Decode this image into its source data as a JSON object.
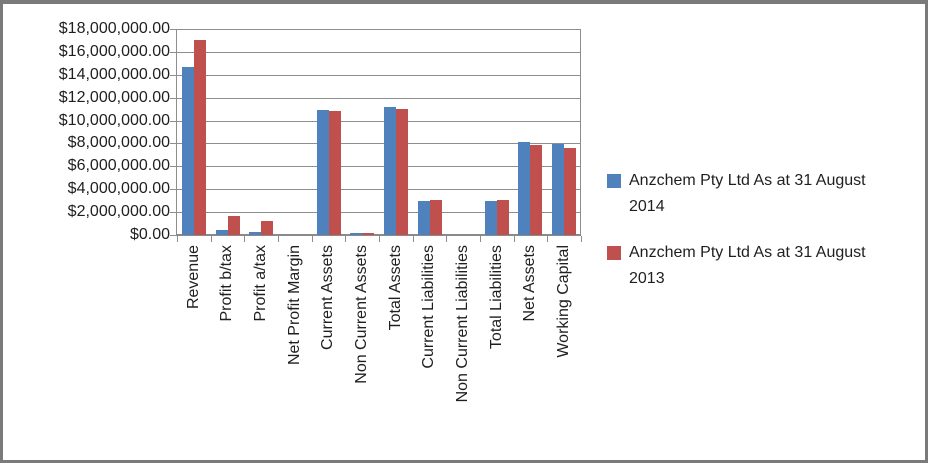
{
  "window": {
    "background": "#ffffff",
    "border_color": "#7a7a7a"
  },
  "colors": {
    "gridline": "#8e8e8e",
    "axis_text": "#1f1f1f",
    "series_2014": "#4F81BD",
    "series_2013": "#C0504D"
  },
  "chart_data": {
    "type": "bar",
    "title": "",
    "xlabel": "",
    "ylabel": "",
    "grid": true,
    "legend_position": "right",
    "ylim": [
      0,
      18000000
    ],
    "ytick_step": 2000000,
    "ytick_labels": [
      "$18,000,000.00",
      "$16,000,000.00",
      "$14,000,000.00",
      "$12,000,000.00",
      "$10,000,000.00",
      "$8,000,000.00",
      "$6,000,000.00",
      "$4,000,000.00",
      "$2,000,000.00",
      "$0.00"
    ],
    "categories": [
      "Revenue",
      "Profit b/tax",
      "Profit a/tax",
      "Net Profit Margin",
      "Current Assets",
      "Non Current Assets",
      "Total Assets",
      "Current Liabilities",
      "Non Current Liabilities",
      "Total Liabilities",
      "Net Assets",
      "Working Capital"
    ],
    "series": [
      {
        "name": "Anzchem Pty Ltd As at 31 August 2014",
        "color": "#4F81BD",
        "values": [
          14700000,
          400000,
          300000,
          0,
          10900000,
          200000,
          11150000,
          2950000,
          0,
          2950000,
          8150000,
          7950000
        ]
      },
      {
        "name": "Anzchem Pty Ltd As at 31 August 2013",
        "color": "#C0504D",
        "values": [
          17000000,
          1700000,
          1200000,
          0,
          10800000,
          150000,
          11050000,
          3100000,
          0,
          3100000,
          7900000,
          7600000
        ]
      }
    ]
  }
}
